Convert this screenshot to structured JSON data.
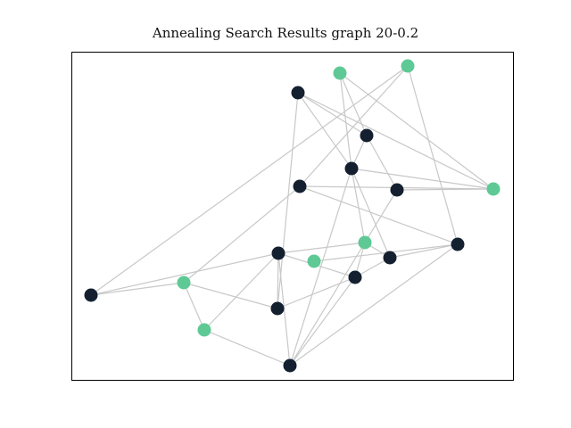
{
  "title": "Annealing Search Results graph 20-0.2",
  "colors": {
    "dark_node": "#14202f",
    "green_node": "#5ec995",
    "edge": "#c8c8c8",
    "frame": "#000000"
  },
  "graph": {
    "nodes": [
      {
        "id": 0,
        "type": "dark"
      },
      {
        "id": 1,
        "type": "green"
      },
      {
        "id": 2,
        "type": "green"
      },
      {
        "id": 3,
        "type": "dark"
      },
      {
        "id": 4,
        "type": "dark"
      },
      {
        "id": 5,
        "type": "dark"
      },
      {
        "id": 6,
        "type": "green"
      },
      {
        "id": 7,
        "type": "dark"
      },
      {
        "id": 8,
        "type": "green"
      },
      {
        "id": 9,
        "type": "dark"
      },
      {
        "id": 10,
        "type": "dark"
      },
      {
        "id": 11,
        "type": "dark"
      },
      {
        "id": 12,
        "type": "dark"
      },
      {
        "id": 13,
        "type": "dark"
      },
      {
        "id": 14,
        "type": "green"
      },
      {
        "id": 15,
        "type": "dark"
      },
      {
        "id": 16,
        "type": "green"
      },
      {
        "id": 17,
        "type": "dark"
      },
      {
        "id": 18,
        "type": "green"
      }
    ],
    "edges": [
      [
        0,
        1
      ],
      [
        0,
        5
      ],
      [
        1,
        3
      ],
      [
        1,
        11
      ],
      [
        1,
        2
      ],
      [
        11,
        15
      ],
      [
        2,
        5
      ],
      [
        3,
        5
      ],
      [
        3,
        7
      ],
      [
        4,
        5
      ],
      [
        5,
        8
      ],
      [
        5,
        7
      ],
      [
        4,
        10
      ],
      [
        4,
        15
      ],
      [
        4,
        8
      ],
      [
        6,
        15
      ],
      [
        9,
        15
      ],
      [
        9,
        10
      ],
      [
        9,
        8
      ],
      [
        7,
        8
      ],
      [
        8,
        13
      ],
      [
        8,
        10
      ],
      [
        10,
        12
      ],
      [
        10,
        17
      ],
      [
        12,
        17
      ],
      [
        12,
        13
      ],
      [
        14,
        16
      ],
      [
        13,
        14
      ],
      [
        10,
        14
      ],
      [
        11,
        14
      ],
      [
        11,
        18
      ],
      [
        12,
        16
      ],
      [
        10,
        16
      ],
      [
        17,
        14
      ],
      [
        0,
        18
      ],
      [
        7,
        4
      ],
      [
        9,
        7
      ],
      [
        18,
        15
      ],
      [
        3,
        17
      ],
      [
        2,
        4
      ]
    ]
  }
}
